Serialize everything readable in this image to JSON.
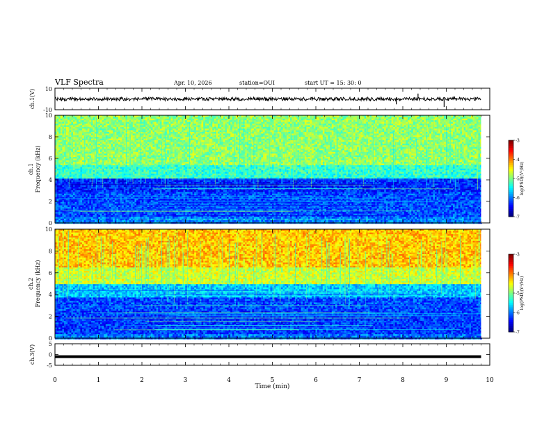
{
  "header": {
    "title": "VLF Spectra",
    "date": "Apr. 10, 2026",
    "station": "station=OUI",
    "start": "start  UT  =   15: 30: 0"
  },
  "chart_data": [
    {
      "type": "line",
      "name": "ch1-waveform",
      "ylabel": "ch.1(V)",
      "ylim": [
        -10,
        10
      ],
      "yticks": [
        "10",
        "-10"
      ],
      "xlim": [
        0,
        10
      ],
      "baseline": 0,
      "spikes": [
        {
          "x": 7.85,
          "y": -2
        },
        {
          "x": 8.35,
          "y": 2
        },
        {
          "x": 8.95,
          "y": -3
        }
      ]
    },
    {
      "type": "heatmap",
      "name": "ch1-spectrogram",
      "ylabel": "ch.1\nFrequency (kHz)",
      "ylim": [
        0,
        10
      ],
      "yticks": [
        "0",
        "2",
        "4",
        "6",
        "8",
        "10"
      ],
      "xlim": [
        0,
        10
      ],
      "data_end_min": 9.8,
      "colorbar": {
        "label": "log(PSD)(V²/Hz)",
        "range": [
          -7,
          -3
        ],
        "ticks": [
          "-3",
          "-4",
          "-5",
          "-6",
          "-7"
        ]
      }
    },
    {
      "type": "heatmap",
      "name": "ch2-spectrogram",
      "ylabel": "ch.2\nFrequency (kHz)",
      "ylim": [
        0,
        10
      ],
      "yticks": [
        "0",
        "2",
        "4",
        "6",
        "8",
        "10"
      ],
      "xlim": [
        0,
        10
      ],
      "data_end_min": 9.8,
      "colorbar": {
        "label": "log(PSD)(V²/Hz)",
        "range": [
          -7,
          -3
        ],
        "ticks": [
          "-3",
          "-4",
          "-5",
          "-6",
          "-7"
        ]
      }
    },
    {
      "type": "line",
      "name": "ch3-waveform",
      "ylabel": "ch.3(V)",
      "ylim": [
        -5,
        5
      ],
      "yticks": [
        "5",
        "0",
        "-5"
      ],
      "xlim": [
        0,
        10
      ],
      "baseline": -1
    }
  ],
  "xaxis": {
    "label": "Time (min)",
    "ticks": [
      "0",
      "1",
      "2",
      "3",
      "4",
      "5",
      "6",
      "7",
      "8",
      "9",
      "10"
    ]
  }
}
